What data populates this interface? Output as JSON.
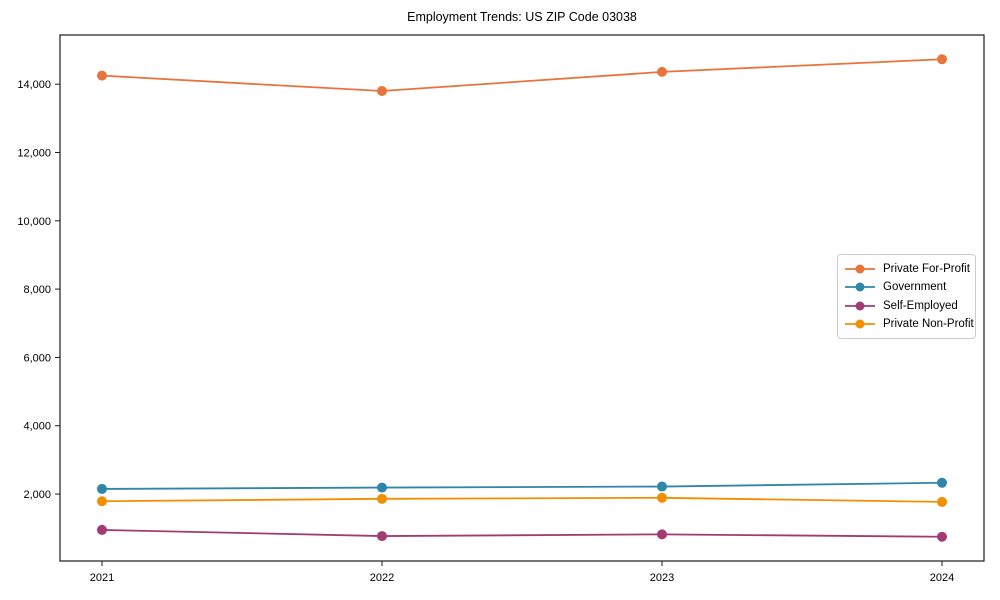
{
  "chart_data": {
    "type": "line",
    "title": "Employment Trends: US ZIP Code 03038",
    "xlabel": "",
    "ylabel": "",
    "categories": [
      "2021",
      "2022",
      "2023",
      "2024"
    ],
    "series": [
      {
        "name": "Private For-Profit",
        "color": "#E8743B",
        "values": [
          14250,
          13800,
          14360,
          14730
        ]
      },
      {
        "name": "Government",
        "color": "#2E86AB",
        "values": [
          2150,
          2190,
          2220,
          2330
        ]
      },
      {
        "name": "Self-Employed",
        "color": "#A23B72",
        "values": [
          950,
          770,
          820,
          750
        ]
      },
      {
        "name": "Private Non-Profit",
        "color": "#F18F01",
        "values": [
          1790,
          1860,
          1890,
          1770
        ]
      }
    ],
    "ylim": [
      40,
      15440
    ],
    "yticks": [
      2000,
      4000,
      6000,
      8000,
      10000,
      12000,
      14000
    ],
    "ytick_labels": [
      "2,000",
      "4,000",
      "6,000",
      "8,000",
      "10,000",
      "12,000",
      "14,000"
    ],
    "grid": false,
    "marker": "circle",
    "legend_position": "center-right",
    "axis_color": "#1a1a1a"
  }
}
